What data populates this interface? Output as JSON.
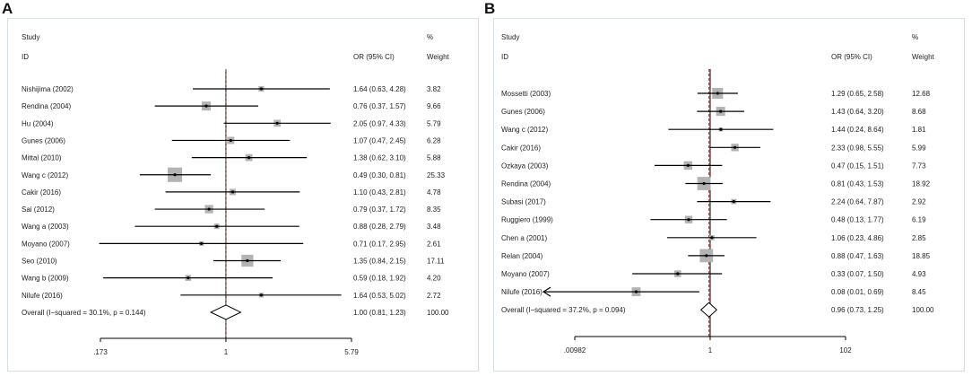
{
  "panels": [
    {
      "letter": "A",
      "header": {
        "study_line1": "Study",
        "study_line2": "ID",
        "or_label": "OR (95% CI)",
        "weight_line1": "%",
        "weight_line2": "Weight"
      },
      "axis_ticks": [
        0.173,
        1,
        5.79
      ],
      "axis_tick_labels": [
        ".173",
        "1",
        "5.79"
      ]
    },
    {
      "letter": "B",
      "header": {
        "study_line1": "Study",
        "study_line2": "ID",
        "or_label": "OR (95% CI)",
        "weight_line1": "%",
        "weight_line2": "Weight"
      },
      "axis_ticks": [
        0.00982,
        1,
        102
      ],
      "axis_tick_labels": [
        ".00982",
        "1",
        "102"
      ]
    }
  ],
  "chart_data": [
    {
      "type": "forest",
      "panel": "A",
      "x_scale": "log",
      "xlim": [
        0.173,
        5.79
      ],
      "reference_line": 1,
      "pooled_line": 1.0,
      "columns": [
        "Study ID",
        "OR (95% CI)",
        "% Weight"
      ],
      "studies": [
        {
          "name": "Nishijima (2002)",
          "or": 1.64,
          "lo": 0.63,
          "hi": 4.28,
          "ci_text": "1.64 (0.63, 4.28)",
          "weight": 3.82,
          "weight_text": "3.82"
        },
        {
          "name": "Rendina (2004)",
          "or": 0.76,
          "lo": 0.37,
          "hi": 1.57,
          "ci_text": "0.76 (0.37, 1.57)",
          "weight": 9.66,
          "weight_text": "9.66"
        },
        {
          "name": "Hu (2004)",
          "or": 2.05,
          "lo": 0.97,
          "hi": 4.33,
          "ci_text": "2.05 (0.97, 4.33)",
          "weight": 5.79,
          "weight_text": "5.79"
        },
        {
          "name": "Gunes (2006)",
          "or": 1.07,
          "lo": 0.47,
          "hi": 2.45,
          "ci_text": "1.07 (0.47, 2.45)",
          "weight": 6.28,
          "weight_text": "6.28"
        },
        {
          "name": "Mittal (2010)",
          "or": 1.38,
          "lo": 0.62,
          "hi": 3.1,
          "ci_text": "1.38 (0.62, 3.10)",
          "weight": 5.88,
          "weight_text": "5.88"
        },
        {
          "name": "Wang c (2012)",
          "or": 0.49,
          "lo": 0.3,
          "hi": 0.81,
          "ci_text": "0.49 (0.30, 0.81)",
          "weight": 25.33,
          "weight_text": "25.33"
        },
        {
          "name": "Cakir (2016)",
          "or": 1.1,
          "lo": 0.43,
          "hi": 2.81,
          "ci_text": "1.10 (0.43, 2.81)",
          "weight": 4.78,
          "weight_text": "4.78"
        },
        {
          "name": "Sai (2012)",
          "or": 0.79,
          "lo": 0.37,
          "hi": 1.72,
          "ci_text": "0.79 (0.37, 1.72)",
          "weight": 8.35,
          "weight_text": "8.35"
        },
        {
          "name": "Wang a (2003)",
          "or": 0.88,
          "lo": 0.28,
          "hi": 2.79,
          "ci_text": "0.88 (0.28, 2.79)",
          "weight": 3.48,
          "weight_text": "3.48"
        },
        {
          "name": "Moyano (2007)",
          "or": 0.71,
          "lo": 0.17,
          "hi": 2.95,
          "ci_text": "0.71 (0.17, 2.95)",
          "weight": 2.61,
          "weight_text": "2.61"
        },
        {
          "name": "Seo (2010)",
          "or": 1.35,
          "lo": 0.84,
          "hi": 2.15,
          "ci_text": "1.35 (0.84, 2.15)",
          "weight": 17.11,
          "weight_text": "17.11"
        },
        {
          "name": "Wang b (2009)",
          "or": 0.59,
          "lo": 0.18,
          "hi": 1.92,
          "ci_text": "0.59 (0.18, 1.92)",
          "weight": 4.2,
          "weight_text": "4.20"
        },
        {
          "name": "Nilufe (2016)",
          "or": 1.64,
          "lo": 0.53,
          "hi": 5.02,
          "ci_text": "1.64 (0.53, 5.02)",
          "weight": 2.72,
          "weight_text": "2.72"
        }
      ],
      "overall": {
        "label": "Overall  (I−squared = 30.1%, p = 0.144)",
        "or": 1.0,
        "lo": 0.81,
        "hi": 1.23,
        "ci_text": "1.00 (0.81, 1.23)",
        "weight_text": "100.00"
      }
    },
    {
      "type": "forest",
      "panel": "B",
      "x_scale": "log",
      "xlim": [
        0.00982,
        102
      ],
      "reference_line": 1,
      "pooled_line": 0.96,
      "columns": [
        "Study ID",
        "OR (95% CI)",
        "% Weight"
      ],
      "studies": [
        {
          "name": "Mossetti (2003)",
          "or": 1.29,
          "lo": 0.65,
          "hi": 2.58,
          "ci_text": "1.29 (0.65, 2.58)",
          "weight": 12.68,
          "weight_text": "12.68"
        },
        {
          "name": "Gunes (2006)",
          "or": 1.43,
          "lo": 0.64,
          "hi": 3.2,
          "ci_text": "1.43 (0.64, 3.20)",
          "weight": 8.68,
          "weight_text": "8.68"
        },
        {
          "name": "Wang c (2012)",
          "or": 1.44,
          "lo": 0.24,
          "hi": 8.64,
          "ci_text": "1.44 (0.24, 8.64)",
          "weight": 1.81,
          "weight_text": "1.81"
        },
        {
          "name": "Cakir (2016)",
          "or": 2.33,
          "lo": 0.98,
          "hi": 5.55,
          "ci_text": "2.33 (0.98, 5.55)",
          "weight": 5.99,
          "weight_text": "5.99"
        },
        {
          "name": "Ozkaya (2003)",
          "or": 0.47,
          "lo": 0.15,
          "hi": 1.51,
          "ci_text": "0.47 (0.15, 1.51)",
          "weight": 7.73,
          "weight_text": "7.73"
        },
        {
          "name": "Rendina (2004)",
          "or": 0.81,
          "lo": 0.43,
          "hi": 1.53,
          "ci_text": "0.81 (0.43, 1.53)",
          "weight": 18.92,
          "weight_text": "18.92"
        },
        {
          "name": "Subasi (2017)",
          "or": 2.24,
          "lo": 0.64,
          "hi": 7.87,
          "ci_text": "2.24 (0.64, 7.87)",
          "weight": 2.92,
          "weight_text": "2.92"
        },
        {
          "name": "Ruggiero (1999)",
          "or": 0.48,
          "lo": 0.13,
          "hi": 1.77,
          "ci_text": "0.48 (0.13, 1.77)",
          "weight": 6.19,
          "weight_text": "6.19"
        },
        {
          "name": "Chen a (2001)",
          "or": 1.06,
          "lo": 0.23,
          "hi": 4.86,
          "ci_text": "1.06 (0.23, 4.86)",
          "weight": 2.85,
          "weight_text": "2.85"
        },
        {
          "name": "Relan (2004)",
          "or": 0.88,
          "lo": 0.47,
          "hi": 1.63,
          "ci_text": "0.88 (0.47, 1.63)",
          "weight": 18.85,
          "weight_text": "18.85"
        },
        {
          "name": "Moyano (2007)",
          "or": 0.33,
          "lo": 0.07,
          "hi": 1.5,
          "ci_text": "0.33 (0.07, 1.50)",
          "weight": 4.93,
          "weight_text": "4.93"
        },
        {
          "name": "Nilufe (2016)",
          "or": 0.08,
          "lo": 0.01,
          "hi": 0.69,
          "ci_text": "0.08 (0.01, 0.69)",
          "weight": 8.45,
          "weight_text": "8.45",
          "arrow_left": true
        }
      ],
      "overall": {
        "label": "Overall  (I−squared = 37.2%, p = 0.094)",
        "or": 0.96,
        "lo": 0.73,
        "hi": 1.25,
        "ci_text": "0.96 (0.73, 1.25)",
        "weight_text": "100.00"
      }
    }
  ],
  "colors": {
    "line": "#000000",
    "box": "#b3b3b3",
    "pooled_line": "#a33a3a",
    "border": "#d6dfe6",
    "background": "#ffffff"
  }
}
